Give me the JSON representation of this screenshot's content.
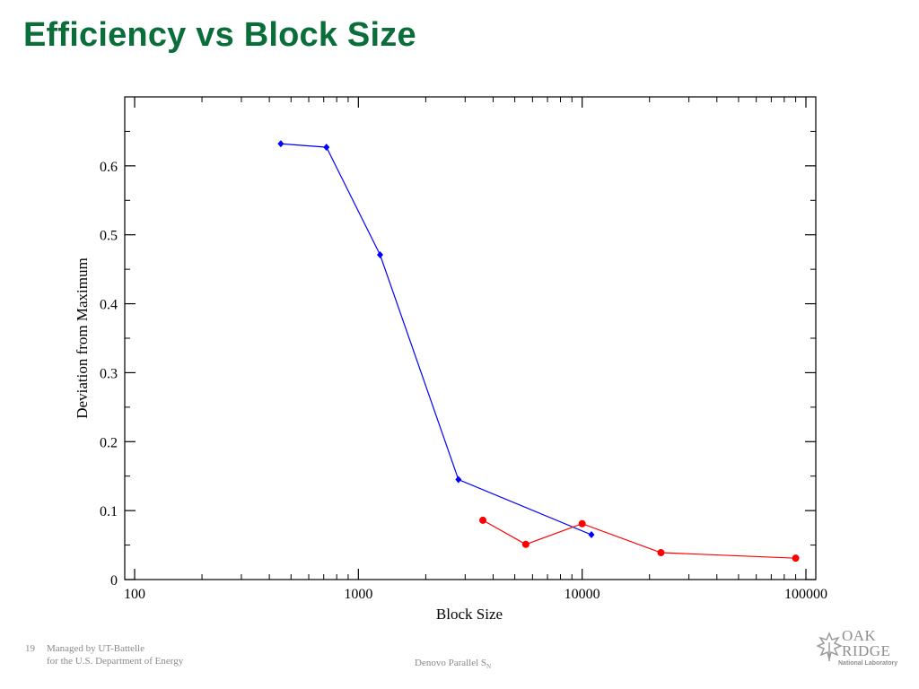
{
  "slide": {
    "title": "Efficiency vs Block Size",
    "number": "19",
    "managed_line1": "Managed by UT-Battelle",
    "managed_line2": "for the U.S. Department of Energy",
    "center_footer": "Denovo Parallel S",
    "center_footer_sub": "N",
    "logo_line1": "OAK",
    "logo_line2": "RIDGE",
    "logo_line3": "National Laboratory",
    "title_color": "#0a6e3a"
  },
  "chart_data": {
    "type": "line",
    "title": "",
    "xlabel": "Block Size",
    "ylabel": "Deviation from Maximum",
    "xscale": "log",
    "xlim": [
      100,
      100000
    ],
    "ylim": [
      0,
      0.7
    ],
    "xticks": [
      100,
      1000,
      10000,
      100000
    ],
    "xtick_labels": [
      "100",
      "1000",
      "10000",
      "100000"
    ],
    "yticks": [
      0,
      0.1,
      0.2,
      0.3,
      0.4,
      0.5,
      0.6
    ],
    "ytick_labels": [
      "0",
      "0.1",
      "0.2",
      "0.3",
      "0.4",
      "0.5",
      "0.6"
    ],
    "grid": false,
    "series": [
      {
        "name": "blue series",
        "color": "#0000ff",
        "marker": "diamond",
        "x": [
          450,
          720,
          1250,
          2800,
          11000
        ],
        "y": [
          0.632,
          0.627,
          0.471,
          0.145,
          0.065
        ]
      },
      {
        "name": "red series",
        "color": "#ff0000",
        "marker": "circle",
        "x": [
          3600,
          5600,
          10000,
          22500,
          90000
        ],
        "y": [
          0.086,
          0.051,
          0.081,
          0.039,
          0.031
        ]
      }
    ]
  }
}
